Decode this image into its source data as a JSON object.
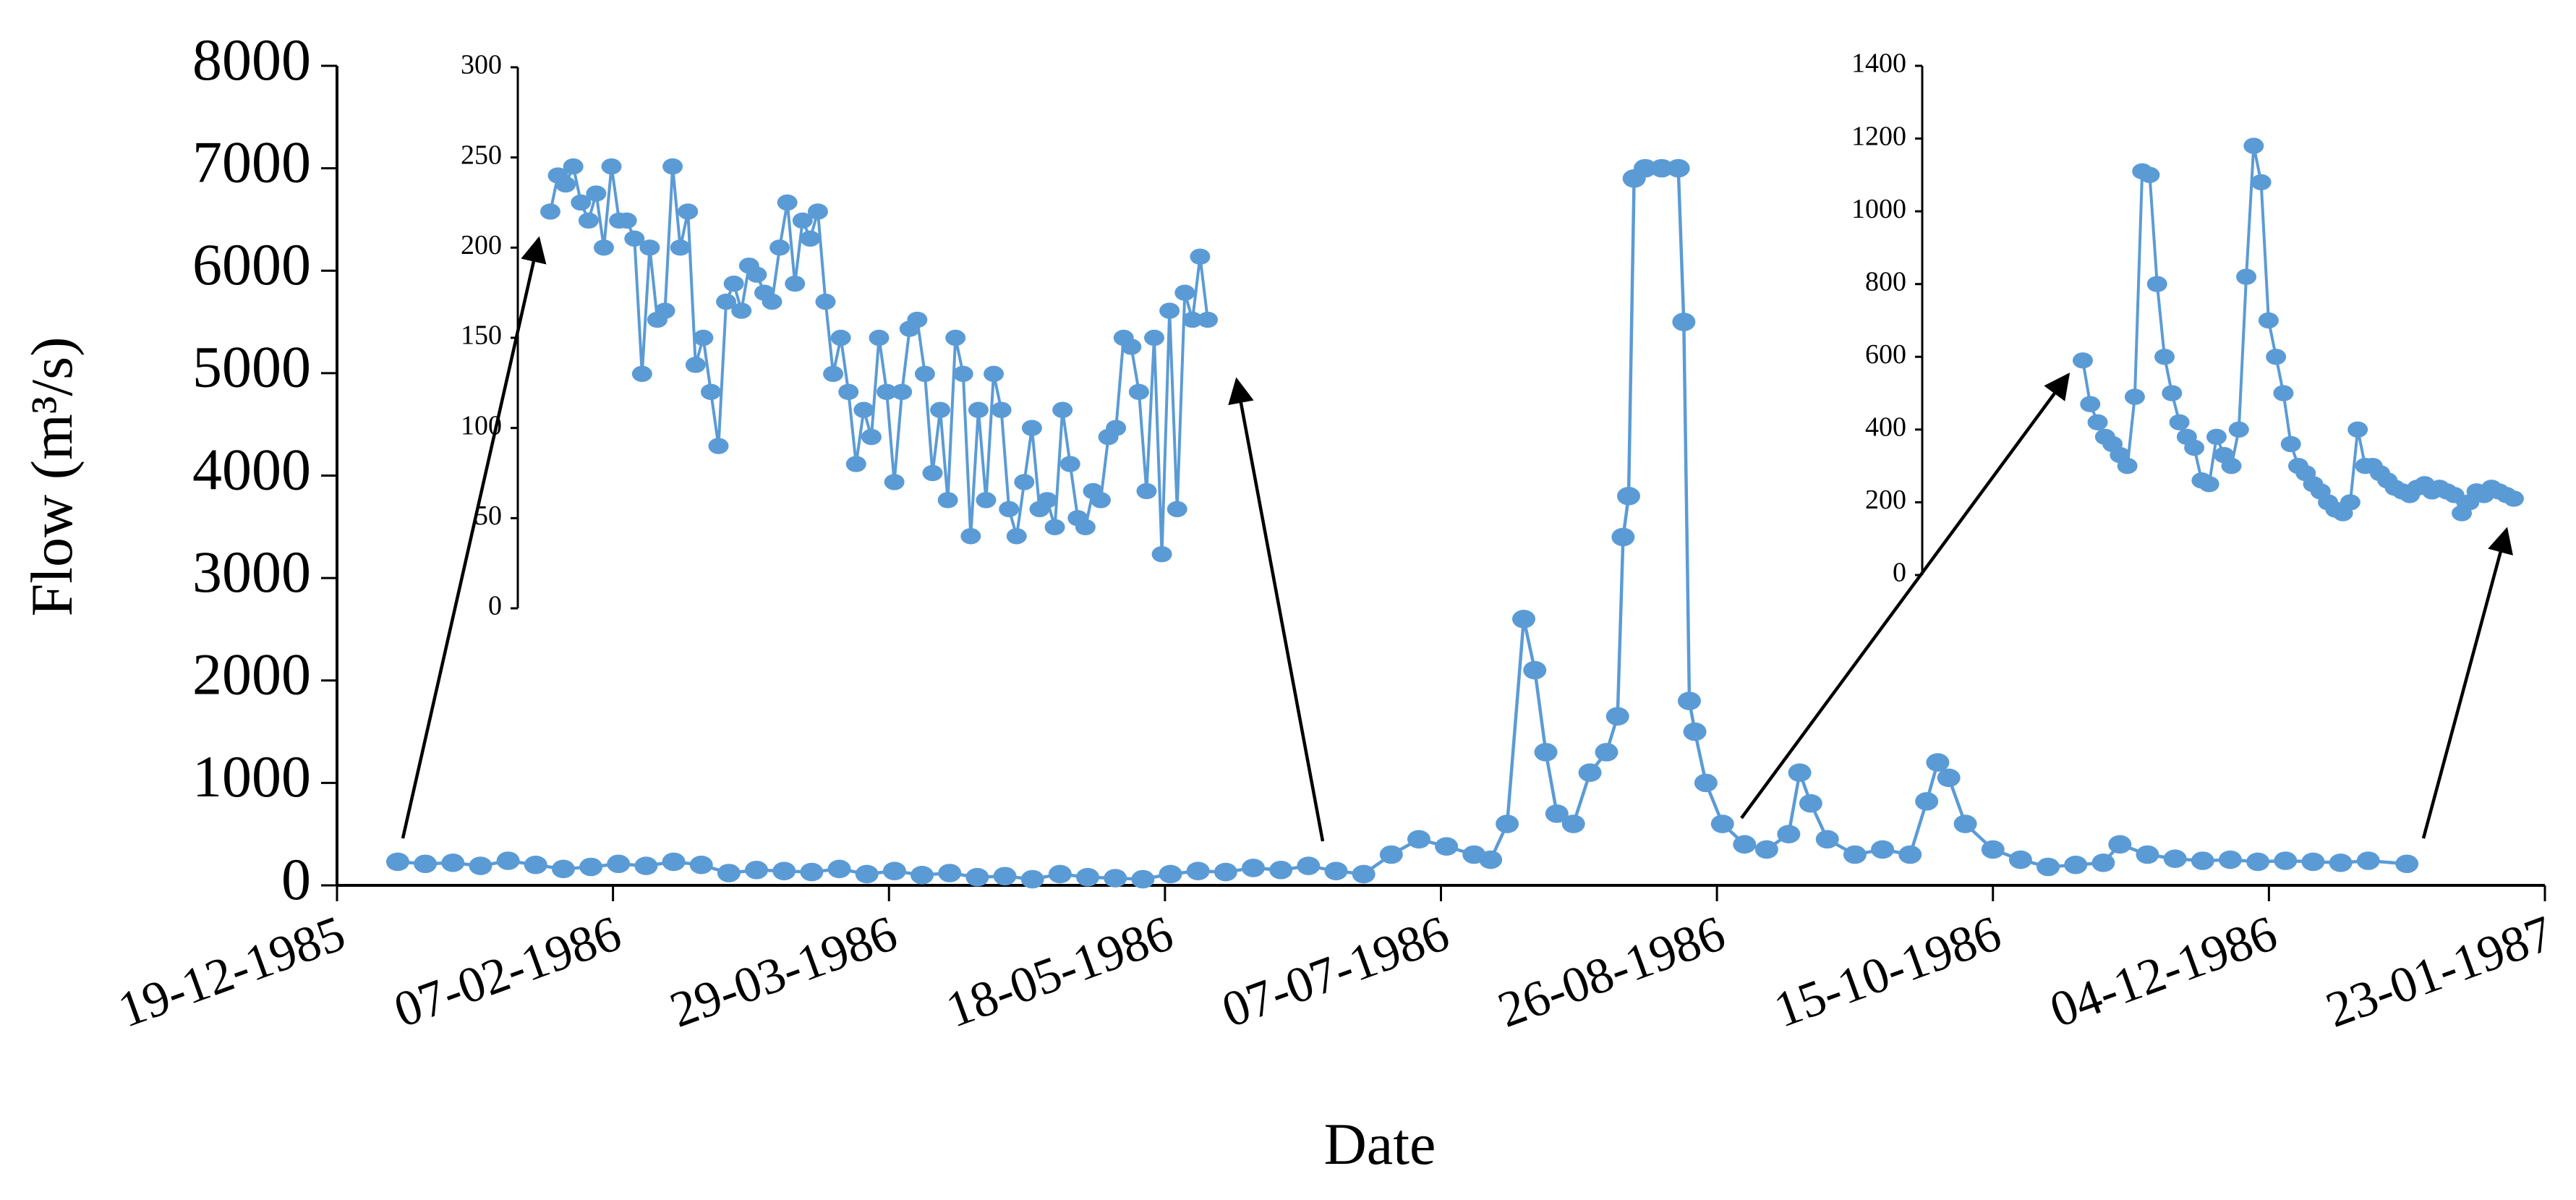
{
  "chart_data": [
    {
      "type": "line",
      "color": "#5b9bd5",
      "xlabel": "Date",
      "ylabel": "Flow (m³/s)",
      "ylim": [
        0,
        8000
      ],
      "yticks": [
        0,
        1000,
        2000,
        3000,
        4000,
        5000,
        6000,
        7000,
        8000
      ],
      "xlim": [
        "19-12-1985",
        "23-01-1987"
      ],
      "xticks": [
        "19-12-1985",
        "07-02-1986",
        "29-03-1986",
        "18-05-1986",
        "07-07-1986",
        "26-08-1986",
        "15-10-1986",
        "04-12-1986",
        "23-01-1987"
      ],
      "x": [
        "30-12-1985",
        "04-01-1986",
        "09-01-1986",
        "14-01-1986",
        "19-01-1986",
        "24-01-1986",
        "29-01-1986",
        "03-02-1986",
        "08-02-1986",
        "13-02-1986",
        "18-02-1986",
        "23-02-1986",
        "28-02-1986",
        "05-03-1986",
        "10-03-1986",
        "15-03-1986",
        "20-03-1986",
        "25-03-1986",
        "30-03-1986",
        "04-04-1986",
        "09-04-1986",
        "14-04-1986",
        "19-04-1986",
        "24-04-1986",
        "29-04-1986",
        "04-05-1986",
        "09-05-1986",
        "14-05-1986",
        "19-05-1986",
        "24-05-1986",
        "29-05-1986",
        "03-06-1986",
        "08-06-1986",
        "13-06-1986",
        "18-06-1986",
        "23-06-1986",
        "28-06-1986",
        "03-07-1986",
        "08-07-1986",
        "13-07-1986",
        "16-07-1986",
        "19-07-1986",
        "22-07-1986",
        "24-07-1986",
        "26-07-1986",
        "28-07-1986",
        "31-07-1986",
        "03-08-1986",
        "06-08-1986",
        "08-08-1986",
        "09-08-1986",
        "10-08-1986",
        "11-08-1986",
        "13-08-1986",
        "16-08-1986",
        "19-08-1986",
        "20-08-1986",
        "21-08-1986",
        "22-08-1986",
        "24-08-1986",
        "27-08-1986",
        "31-08-1986",
        "04-09-1986",
        "08-09-1986",
        "10-09-1986",
        "12-09-1986",
        "15-09-1986",
        "20-09-1986",
        "25-09-1986",
        "30-09-1986",
        "03-10-1986",
        "05-10-1986",
        "07-10-1986",
        "10-10-1986",
        "15-10-1986",
        "20-10-1986",
        "25-10-1986",
        "30-10-1986",
        "04-11-1986",
        "07-11-1986",
        "12-11-1986",
        "17-11-1986",
        "22-11-1986",
        "27-11-1986",
        "02-12-1986",
        "07-12-1986",
        "12-12-1986",
        "17-12-1986",
        "22-12-1986",
        "29-12-1986"
      ],
      "values": [
        230,
        210,
        220,
        190,
        240,
        200,
        160,
        180,
        210,
        190,
        230,
        200,
        120,
        150,
        140,
        130,
        160,
        110,
        140,
        100,
        120,
        80,
        90,
        60,
        110,
        80,
        70,
        60,
        110,
        140,
        130,
        170,
        150,
        190,
        140,
        110,
        300,
        450,
        380,
        300,
        250,
        600,
        2600,
        2100,
        1300,
        700,
        600,
        1100,
        1300,
        1650,
        3400,
        3800,
        6900,
        7000,
        7000,
        7000,
        5500,
        1800,
        1500,
        1000,
        600,
        400,
        350,
        500,
        1100,
        800,
        450,
        300,
        350,
        300,
        820,
        1200,
        1050,
        600,
        350,
        250,
        180,
        200,
        220,
        400,
        300,
        260,
        240,
        250,
        230,
        240,
        230,
        220,
        240,
        210
      ]
    },
    {
      "type": "line",
      "color": "#5b9bd5",
      "ylim": [
        0,
        300
      ],
      "yticks": [
        0,
        50,
        100,
        150,
        200,
        250,
        300
      ],
      "values": [
        220,
        240,
        235,
        245,
        225,
        215,
        230,
        200,
        245,
        215,
        215,
        205,
        130,
        200,
        160,
        165,
        245,
        200,
        220,
        135,
        150,
        120,
        90,
        170,
        180,
        165,
        190,
        185,
        175,
        170,
        200,
        225,
        180,
        215,
        205,
        220,
        170,
        130,
        150,
        120,
        80,
        110,
        95,
        150,
        120,
        70,
        120,
        155,
        160,
        130,
        75,
        110,
        60,
        150,
        130,
        40,
        110,
        60,
        130,
        110,
        55,
        40,
        70,
        100,
        55,
        60,
        45,
        110,
        80,
        50,
        45,
        65,
        60,
        95,
        100,
        150,
        145,
        120,
        65,
        150,
        30,
        165,
        55,
        175,
        160,
        195,
        160
      ]
    },
    {
      "type": "line",
      "color": "#5b9bd5",
      "ylim": [
        0,
        1400
      ],
      "yticks": [
        0,
        200,
        400,
        600,
        800,
        1000,
        1200,
        1400
      ],
      "values": [
        590,
        470,
        420,
        380,
        360,
        330,
        300,
        490,
        1110,
        1100,
        800,
        600,
        500,
        420,
        380,
        350,
        260,
        250,
        380,
        330,
        300,
        400,
        820,
        1180,
        1080,
        700,
        600,
        500,
        360,
        300,
        280,
        250,
        230,
        200,
        180,
        170,
        200,
        400,
        300,
        300,
        280,
        260,
        240,
        230,
        220,
        240,
        250,
        230,
        240,
        230,
        220,
        170,
        200,
        230,
        220,
        240,
        230,
        220,
        210
      ]
    }
  ]
}
